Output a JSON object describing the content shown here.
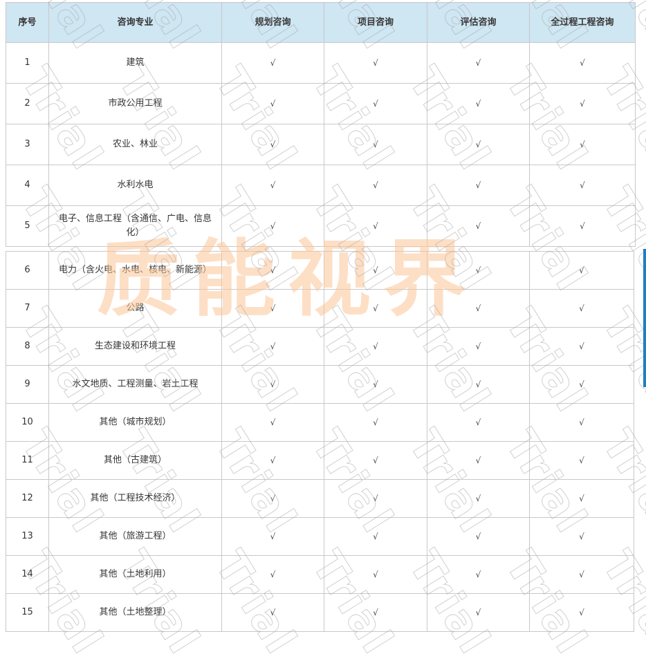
{
  "table": {
    "headers": [
      "序号",
      "咨询专业",
      "规划咨询",
      "项目咨询",
      "评估咨询",
      "全过程工程咨询"
    ],
    "check_mark": "√",
    "rows": [
      {
        "no": "1",
        "specialty": "建筑"
      },
      {
        "no": "2",
        "specialty": "市政公用工程"
      },
      {
        "no": "3",
        "specialty": "农业、林业"
      },
      {
        "no": "4",
        "specialty": "水利水电"
      },
      {
        "no": "5",
        "specialty": "电子、信息工程（含通信、广电、信息化）"
      },
      {
        "no": "6",
        "specialty": "电力（含火电、水电、核电、新能源）"
      },
      {
        "no": "7",
        "specialty": "公路"
      },
      {
        "no": "8",
        "specialty": "生态建设和环境工程"
      },
      {
        "no": "9",
        "specialty": "水文地质、工程测量、岩土工程"
      },
      {
        "no": "10",
        "specialty": "其他（城市规划）"
      },
      {
        "no": "11",
        "specialty": "其他（古建筑）"
      },
      {
        "no": "12",
        "specialty": "其他（工程技术经济）"
      },
      {
        "no": "13",
        "specialty": "其他（旅游工程）"
      },
      {
        "no": "14",
        "specialty": "其他（土地利用）"
      },
      {
        "no": "15",
        "specialty": "其他（土地整理）"
      }
    ]
  },
  "watermark": {
    "text": "Trial",
    "logo": "质能视界"
  },
  "colors": {
    "header_bg": "#cfe6f3",
    "border": "#c8c8c8",
    "logo": "#fcc496",
    "accent": "#1e7fc4"
  }
}
